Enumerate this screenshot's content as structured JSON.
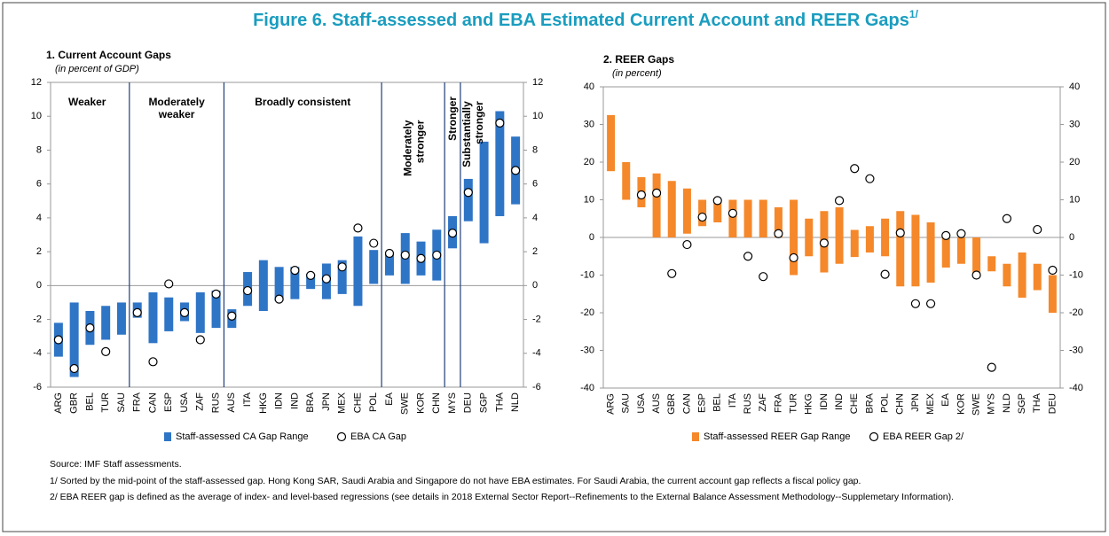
{
  "title": "Figure 6. Staff-assessed and EBA Estimated Current Account and REER Gaps",
  "title_note": "1/",
  "chart_data": [
    {
      "type": "floating_bar",
      "title": "1. Current Account Gaps",
      "subtitle": "(in percent of GDP)",
      "categories": [
        "ARG",
        "GBR",
        "BEL",
        "TUR",
        "SAU",
        "FRA",
        "CAN",
        "ESP",
        "USA",
        "ZAF",
        "RUS",
        "AUS",
        "ITA",
        "HKG",
        "IDN",
        "IND",
        "BRA",
        "JPN",
        "MEX",
        "CHE",
        "POL",
        "EA",
        "SWE",
        "KOR",
        "CHN",
        "MYS",
        "DEU",
        "SGP",
        "THA",
        "NLD"
      ],
      "series": [
        {
          "name": "Staff-assessed CA Gap Range",
          "color": "#2f75c6",
          "low": [
            -4.2,
            -5.4,
            -3.5,
            -3.2,
            -2.9,
            -1.9,
            -3.4,
            -2.7,
            -2.1,
            -2.8,
            -2.5,
            -2.5,
            -1.2,
            -1.5,
            -0.9,
            -0.8,
            -0.2,
            -0.8,
            -0.5,
            -1.2,
            0.1,
            0.6,
            0.1,
            0.6,
            0.3,
            2.2,
            3.8,
            2.5,
            4.1,
            4.8
          ],
          "high": [
            -2.2,
            -1.0,
            -1.5,
            -1.2,
            -1.0,
            -1.0,
            -0.4,
            -0.7,
            -1.0,
            -0.4,
            -0.3,
            -1.4,
            0.8,
            1.5,
            1.1,
            1.1,
            0.7,
            1.3,
            1.5,
            2.9,
            2.1,
            1.9,
            3.1,
            2.6,
            3.3,
            4.1,
            6.3,
            8.5,
            10.3,
            8.8
          ]
        },
        {
          "name": "EBA CA Gap",
          "values": [
            -3.2,
            -4.9,
            -2.5,
            -3.9,
            null,
            -1.6,
            -4.5,
            0.1,
            -1.6,
            -3.2,
            -0.5,
            -1.8,
            -0.3,
            null,
            -0.8,
            0.9,
            0.6,
            0.4,
            1.1,
            3.4,
            2.5,
            1.9,
            1.8,
            1.6,
            1.8,
            3.1,
            5.5,
            null,
            9.6,
            6.8
          ]
        }
      ],
      "groups": [
        "Weaker",
        "Moderately weaker",
        "Broadly consistent",
        "Moderately stronger",
        "Stronger",
        "Substantially stronger"
      ],
      "ylim": [
        -6,
        12
      ],
      "yticks": [
        -6,
        -4,
        -2,
        0,
        2,
        4,
        6,
        8,
        10,
        12
      ]
    },
    {
      "type": "floating_bar",
      "title": "2. REER Gaps",
      "subtitle": "(in percent)",
      "categories": [
        "ARG",
        "SAU",
        "USA",
        "AUS",
        "GBR",
        "CAN",
        "ESP",
        "BEL",
        "ITA",
        "RUS",
        "ZAF",
        "FRA",
        "TUR",
        "HKG",
        "IDN",
        "IND",
        "CHE",
        "BRA",
        "POL",
        "CHN",
        "JPN",
        "MEX",
        "EA",
        "KOR",
        "SWE",
        "MYS",
        "NLD",
        "SGP",
        "THA",
        "DEU"
      ],
      "series": [
        {
          "name": "Staff-assessed REER Gap Range",
          "color": "#f5882a",
          "low": [
            17.6,
            10,
            8,
            0,
            0,
            1,
            3,
            4,
            0,
            0,
            0,
            0,
            -10,
            -5,
            -9.3,
            -7,
            -5.2,
            -4,
            -5,
            -13,
            -13,
            -12,
            -8,
            -7,
            -10,
            -9,
            -13,
            -16,
            -14,
            -20
          ],
          "high": [
            32.5,
            20,
            16,
            17,
            15,
            13,
            10,
            10,
            10,
            10,
            10,
            8,
            10,
            5,
            7,
            8,
            2,
            3,
            5,
            7,
            6,
            4,
            0,
            0,
            0,
            -5,
            -7,
            -4,
            -7,
            -10
          ]
        },
        {
          "name": "EBA REER Gap 2/",
          "values": [
            null,
            null,
            11.3,
            11.8,
            -9.6,
            -1.9,
            5.4,
            9.8,
            6.4,
            -5.0,
            -10.4,
            1.0,
            -5.4,
            null,
            -1.5,
            9.8,
            18.3,
            15.6,
            -9.8,
            1.2,
            -17.6,
            -17.6,
            0.5,
            1.0,
            -10,
            -34.5,
            5.0,
            null,
            2.1,
            -8.7
          ]
        }
      ],
      "ylim": [
        -40,
        40
      ],
      "yticks": [
        -40,
        -30,
        -20,
        -10,
        0,
        10,
        20,
        30,
        40
      ]
    }
  ],
  "source": "Source: IMF Staff assessments.",
  "notes": [
    "1/ Sorted by the mid-point of the staff-assessed gap. Hong Kong SAR, Saudi Arabia and Singapore do not have EBA estimates. For Saudi Arabia, the current account gap reflects a fiscal policy gap.",
    "2/ EBA REER gap is defined as the average of index- and level-based regressions (see details in 2018 External Sector Report--Refinements to the External Balance Assessment Methodology--Supplemetary Information)."
  ]
}
